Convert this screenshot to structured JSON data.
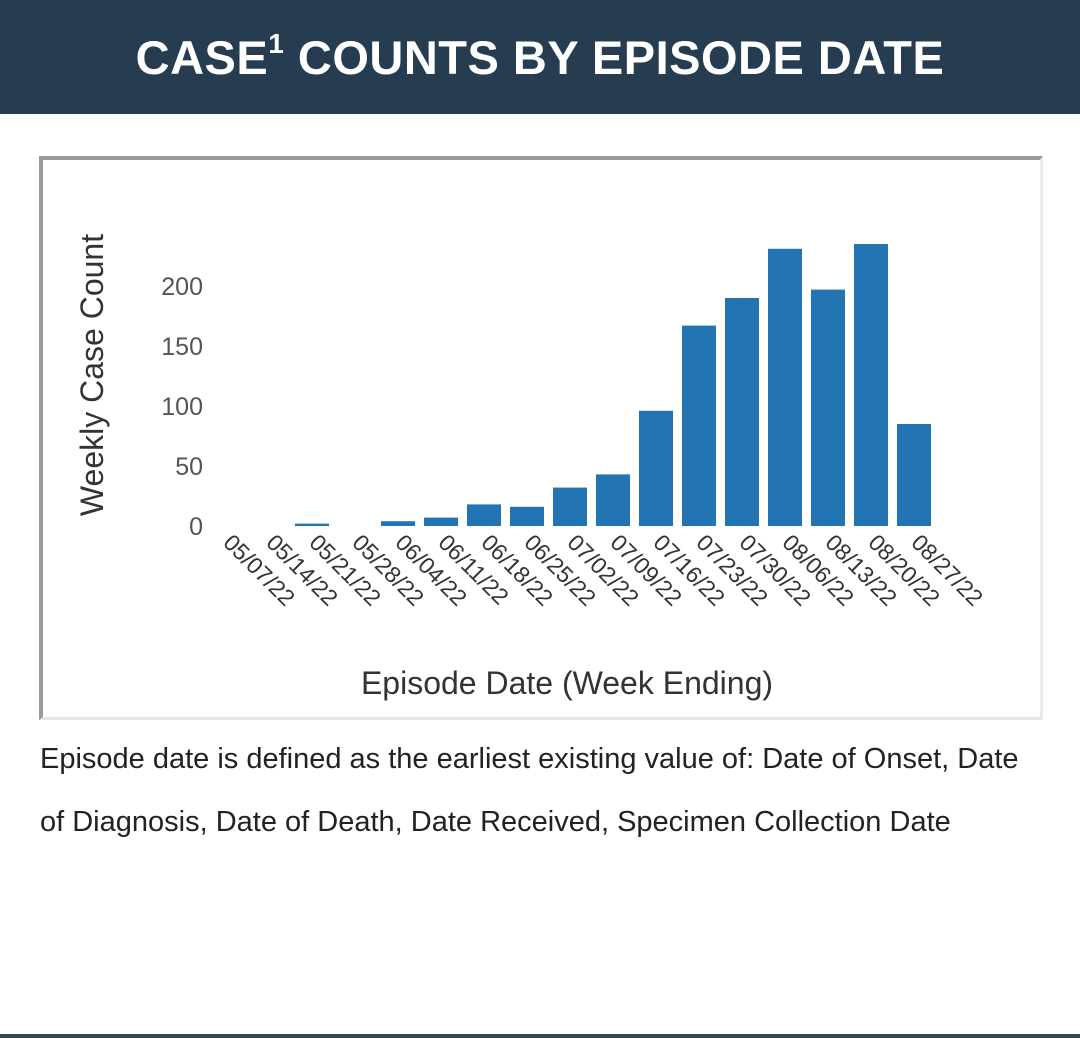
{
  "header": {
    "title_main": "CASE",
    "title_sup": "1",
    "title_rest": " COUNTS BY EPISODE DATE",
    "background": "#263c51"
  },
  "chart_data": {
    "type": "bar",
    "categories": [
      "05/07/22",
      "05/14/22",
      "05/21/22",
      "05/28/22",
      "06/04/22",
      "06/11/22",
      "06/18/22",
      "06/25/22",
      "07/02/22",
      "07/09/22",
      "07/16/22",
      "07/23/22",
      "07/30/22",
      "08/06/22",
      "08/13/22",
      "08/20/22",
      "08/27/22"
    ],
    "values": [
      0,
      0,
      2,
      0,
      4,
      7,
      18,
      16,
      32,
      43,
      96,
      167,
      190,
      231,
      197,
      235,
      85
    ],
    "bar_color": "#2274b2",
    "xlabel": "Episode Date (Week Ending)",
    "ylabel": "Weekly Case Count",
    "yticks": [
      0,
      50,
      100,
      150,
      200
    ],
    "ylim": [
      0,
      240
    ],
    "grid": false
  },
  "footnote": "Episode date is defined as the earliest existing value of: Date of Onset, Date of Diagnosis, Date of Death, Date Received, Specimen Collection Date"
}
